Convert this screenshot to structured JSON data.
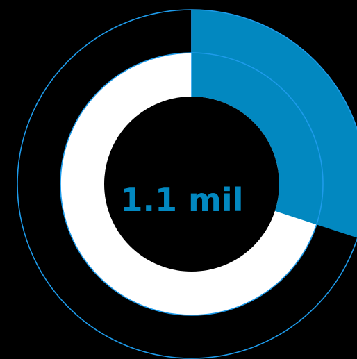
{
  "chart_data": {
    "type": "pie",
    "center_label": "1.1 mil",
    "progress_fraction": 0.3,
    "colors": {
      "background": "#000000",
      "fill": "#0288C0",
      "track": "#FFFFFF",
      "outline": "#1E9BEA",
      "label": "#0288C0"
    }
  }
}
